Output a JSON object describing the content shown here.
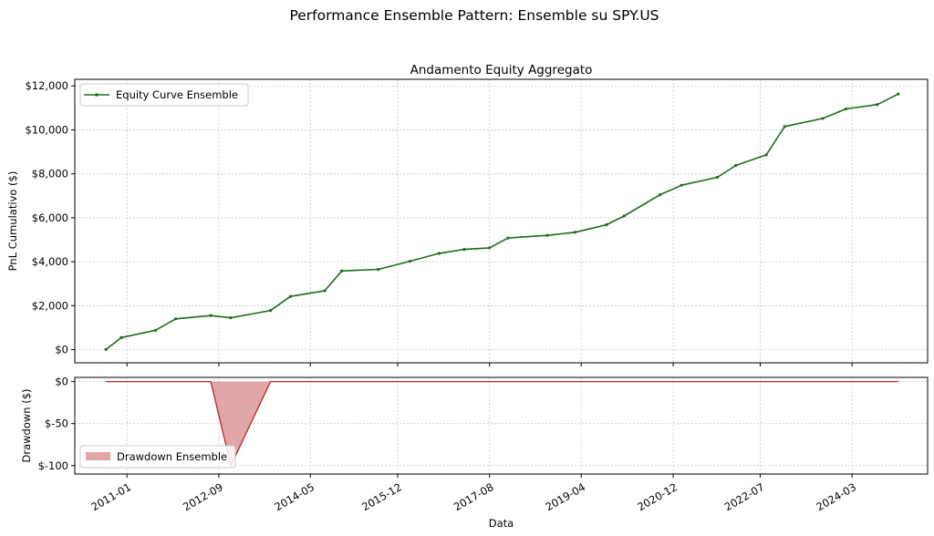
{
  "figure": {
    "suptitle": "Performance Ensemble Pattern: Ensemble su SPY.US"
  },
  "chart_data": [
    {
      "type": "line",
      "title": "Andamento Equity Aggregato",
      "xlabel": "",
      "ylabel": "PnL Cumulativo ($)",
      "ylim": [
        -600,
        12300
      ],
      "yticks": [
        0,
        2000,
        4000,
        6000,
        8000,
        10000,
        12000
      ],
      "ytick_labels": [
        "$0",
        "$2,000",
        "$4,000",
        "$6,000",
        "$8,000",
        "$10,000",
        "$12,000"
      ],
      "grid": true,
      "legend_position": "top-left",
      "series": [
        {
          "name": "Equity Curve Ensemble",
          "color": "#1a6e1a",
          "x": [
            "2010-08-15",
            "2010-11-25",
            "2011-07-10",
            "2011-11-20",
            "2012-07-10",
            "2012-11-20",
            "2013-08-10",
            "2013-12-20",
            "2014-08-05",
            "2014-11-25",
            "2015-07-25",
            "2016-02-20",
            "2016-09-01",
            "2017-02-15",
            "2017-08-01",
            "2017-12-01",
            "2018-08-20",
            "2019-02-20",
            "2019-09-15",
            "2020-01-10",
            "2020-09-05",
            "2021-01-25",
            "2021-09-20",
            "2022-01-20",
            "2022-08-10",
            "2022-12-10",
            "2023-08-20",
            "2024-01-20",
            "2024-08-15",
            "2025-01-01"
          ],
          "values": [
            10,
            550,
            880,
            1400,
            1550,
            1450,
            1780,
            2420,
            2680,
            3580,
            3650,
            4020,
            4380,
            4560,
            4630,
            5080,
            5200,
            5340,
            5680,
            6080,
            7050,
            7480,
            7840,
            8380,
            8860,
            10150,
            10520,
            10950,
            11150,
            11630
          ]
        }
      ]
    },
    {
      "type": "area",
      "title": "",
      "xlabel": "Data",
      "ylabel": "Drawdown ($)",
      "ylim": [
        -110,
        5
      ],
      "yticks": [
        0,
        -50,
        -100
      ],
      "ytick_labels": [
        "$0",
        "$-50",
        "$-100"
      ],
      "grid": true,
      "legend_position": "bottom-left",
      "xticks": [
        "2011-01-01",
        "2012-09-01",
        "2014-05-01",
        "2015-12-01",
        "2017-08-01",
        "2019-04-01",
        "2020-12-01",
        "2022-07-01",
        "2024-03-01"
      ],
      "xtick_labels": [
        "2011-01",
        "2012-09",
        "2014-05",
        "2015-12",
        "2017-08",
        "2019-04",
        "2020-12",
        "2022-07",
        "2024-03"
      ],
      "xlim": [
        "2010-01-20",
        "2025-07-15"
      ],
      "series": [
        {
          "name": "Drawdown Ensemble",
          "line_color": "#b5262a",
          "fill_color": "#e0a6a8",
          "x": [
            "2010-08-15",
            "2012-07-10",
            "2012-11-20",
            "2013-08-10",
            "2025-01-01"
          ],
          "values": [
            0,
            0,
            -100,
            0,
            0
          ]
        }
      ]
    }
  ]
}
